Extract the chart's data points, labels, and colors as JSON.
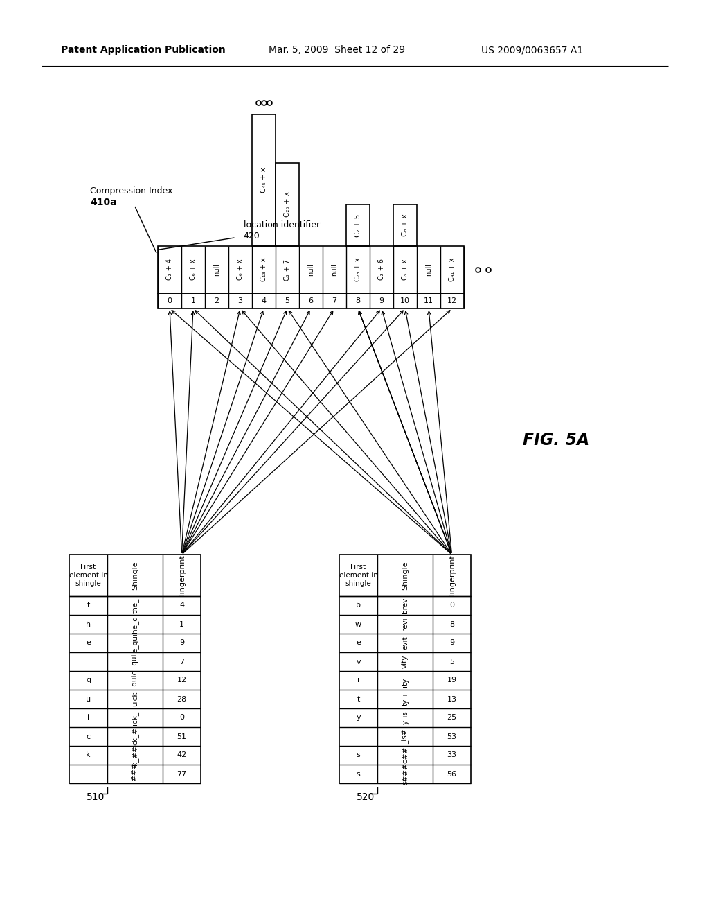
{
  "header_left": "Patent Application Publication",
  "header_mid": "Mar. 5, 2009  Sheet 12 of 29",
  "header_right": "US 2009/0063657 A1",
  "fig_label": "FIG. 5A",
  "compression_index_entries": [
    "C₂ + 4",
    "C₆ + x",
    "null",
    "C₆ + x",
    "C₁₃ + x",
    "C₂ + 7",
    "null",
    "null",
    "C₇₃ + x",
    "C₂ + 6",
    "C₅ + x",
    "null",
    "C₄₁ + x"
  ],
  "compression_index_numbers": [
    "0",
    "1",
    "2",
    "3",
    "4",
    "5",
    "6",
    "7",
    "8",
    "9",
    "10",
    "11",
    "12"
  ],
  "table510_rows": [
    [
      "t",
      "the_",
      "4"
    ],
    [
      "h",
      "he_q",
      "1"
    ],
    [
      "e",
      "e_qui",
      "9"
    ],
    [
      "",
      "_qui",
      "7"
    ],
    [
      "q",
      "_quic",
      "12"
    ],
    [
      "u",
      "uick",
      "28"
    ],
    [
      "i",
      "ick_",
      "0"
    ],
    [
      "c",
      "ck_#",
      "51"
    ],
    [
      "k",
      "k_##",
      "42"
    ],
    [
      "",
      "_###",
      "77"
    ]
  ],
  "table520_rows": [
    [
      "b",
      "brev",
      "0"
    ],
    [
      "w",
      "revi",
      "8"
    ],
    [
      "e",
      "evit",
      "9"
    ],
    [
      "v",
      "vity",
      "5"
    ],
    [
      "i",
      "ity_",
      "19"
    ],
    [
      "t",
      "ty_i",
      "13"
    ],
    [
      "y",
      "y_is",
      "25"
    ],
    [
      "",
      "_is#",
      "53"
    ],
    [
      "s",
      "ic##",
      "33"
    ],
    [
      "s",
      "s###",
      "56"
    ]
  ],
  "arrows510": [
    [
      0,
      0
    ],
    [
      1,
      1
    ],
    [
      2,
      9
    ],
    [
      3,
      5
    ],
    [
      4,
      4
    ],
    [
      5,
      3
    ],
    [
      6,
      6
    ],
    [
      7,
      7
    ],
    [
      8,
      10
    ],
    [
      9,
      12
    ]
  ],
  "arrows520": [
    [
      0,
      0
    ],
    [
      1,
      1
    ],
    [
      2,
      9
    ],
    [
      3,
      8
    ],
    [
      4,
      8
    ],
    [
      5,
      11
    ],
    [
      6,
      5
    ],
    [
      7,
      3
    ],
    [
      8,
      10
    ],
    [
      9,
      8
    ]
  ],
  "background_color": "#ffffff"
}
